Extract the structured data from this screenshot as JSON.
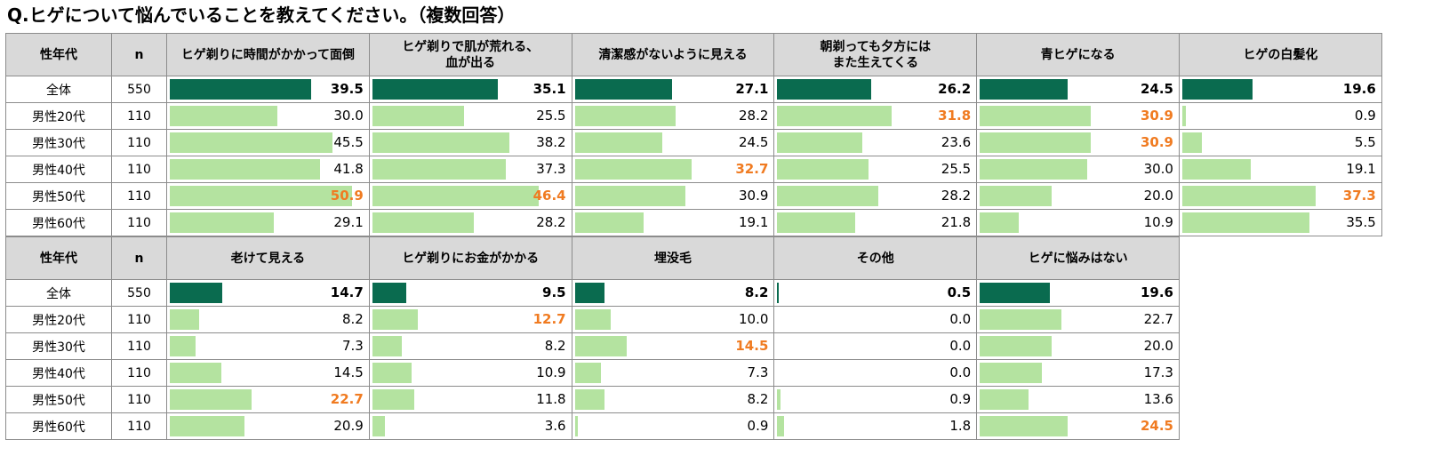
{
  "title": "Q.ヒゲについて悩んでいることを教えてください。（複数回答）",
  "colors": {
    "total_bar": "#0a6b4f",
    "segment_bar": "#b4e3a0",
    "highlight_text": "#f07b21",
    "header_bg": "#d9d9d9"
  },
  "chart_data": {
    "type": "table",
    "row_header_label": "性年代",
    "n_label": "n",
    "rows": [
      "全体",
      "男性20代",
      "男性30代",
      "男性40代",
      "男性50代",
      "男性60代"
    ],
    "n_values": [
      "550",
      "110",
      "110",
      "110",
      "110",
      "110"
    ],
    "value_scale_max": 55,
    "blocks": [
      {
        "columns": [
          {
            "header_lines": [
              "ヒゲ剃りに時間がかかって面倒"
            ],
            "values": [
              "39.5",
              "30.0",
              "45.5",
              "41.8",
              "50.9",
              "29.1"
            ],
            "highlight": [
              4
            ]
          },
          {
            "header_lines": [
              "ヒゲ剃りで肌が荒れる、",
              "血が出る"
            ],
            "values": [
              "35.1",
              "25.5",
              "38.2",
              "37.3",
              "46.4",
              "28.2"
            ],
            "highlight": [
              4
            ]
          },
          {
            "header_lines": [
              "清潔感がないように見える"
            ],
            "values": [
              "27.1",
              "28.2",
              "24.5",
              "32.7",
              "30.9",
              "19.1"
            ],
            "highlight": [
              3
            ]
          },
          {
            "header_lines": [
              "朝剃っても夕方には",
              "また生えてくる"
            ],
            "values": [
              "26.2",
              "31.8",
              "23.6",
              "25.5",
              "28.2",
              "21.8"
            ],
            "highlight": [
              1
            ]
          },
          {
            "header_lines": [
              "青ヒゲになる"
            ],
            "values": [
              "24.5",
              "30.9",
              "30.9",
              "30.0",
              "20.0",
              "10.9"
            ],
            "highlight": [
              1,
              2
            ]
          },
          {
            "header_lines": [
              "ヒゲの白髪化"
            ],
            "values": [
              "19.6",
              "0.9",
              "5.5",
              "19.1",
              "37.3",
              "35.5"
            ],
            "highlight": [
              4
            ]
          }
        ]
      },
      {
        "columns": [
          {
            "header_lines": [
              "老けて見える"
            ],
            "values": [
              "14.7",
              "8.2",
              "7.3",
              "14.5",
              "22.7",
              "20.9"
            ],
            "highlight": [
              4
            ]
          },
          {
            "header_lines": [
              "ヒゲ剃りにお金がかかる"
            ],
            "values": [
              "9.5",
              "12.7",
              "8.2",
              "10.9",
              "11.8",
              "3.6"
            ],
            "highlight": [
              1
            ]
          },
          {
            "header_lines": [
              "埋没毛"
            ],
            "values": [
              "8.2",
              "10.0",
              "14.5",
              "7.3",
              "8.2",
              "0.9"
            ],
            "highlight": [
              2
            ]
          },
          {
            "header_lines": [
              "その他"
            ],
            "values": [
              "0.5",
              "0.0",
              "0.0",
              "0.0",
              "0.9",
              "1.8"
            ],
            "highlight": []
          },
          {
            "header_lines": [
              "ヒゲに悩みはない"
            ],
            "values": [
              "19.6",
              "22.7",
              "20.0",
              "17.3",
              "13.6",
              "24.5"
            ],
            "highlight": [
              5
            ]
          }
        ]
      }
    ]
  }
}
